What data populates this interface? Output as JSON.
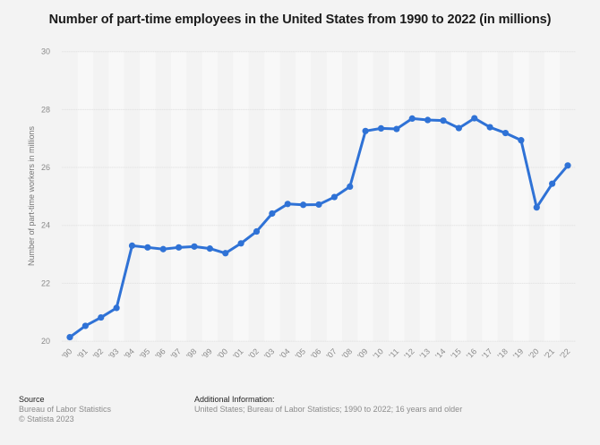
{
  "chart_data": {
    "type": "line",
    "title": "Number of part-time employees in the United States from 1990 to 2022 (in millions)",
    "xlabel": "",
    "ylabel": "Number of part-time workers in millions",
    "ylim": [
      20,
      30
    ],
    "yticks": [
      20,
      22,
      24,
      26,
      28,
      30
    ],
    "grid": true,
    "categories": [
      "'90",
      "'91",
      "'92",
      "'93",
      "'94",
      "'95",
      "'96",
      "'97",
      "'98",
      "'99",
      "'00",
      "'01",
      "'02",
      "'03",
      "'04",
      "'05",
      "'06",
      "'07",
      "'08",
      "'09",
      "'10",
      "'11",
      "'12",
      "'13",
      "'14",
      "'15",
      "'16",
      "'17",
      "'18",
      "'19",
      "'20",
      "'21",
      "'22"
    ],
    "series": [
      {
        "name": "Part-time employees",
        "color": "#2f72d6",
        "values": [
          20.14,
          20.53,
          20.82,
          21.15,
          23.3,
          23.24,
          23.18,
          23.24,
          23.27,
          23.2,
          23.04,
          23.38,
          23.79,
          24.41,
          24.74,
          24.71,
          24.72,
          24.98,
          25.34,
          27.26,
          27.35,
          27.33,
          27.69,
          27.64,
          27.62,
          27.36,
          27.7,
          27.39,
          27.19,
          26.94,
          24.62,
          25.44,
          26.07
        ]
      }
    ]
  },
  "footer": {
    "source_heading": "Source",
    "source_lines": [
      "Bureau of Labor Statistics",
      "© Statista 2023"
    ],
    "info_heading": "Additional Information:",
    "info_text": "United States; Bureau of Labor Statistics; 1990 to 2022; 16 years and older"
  }
}
